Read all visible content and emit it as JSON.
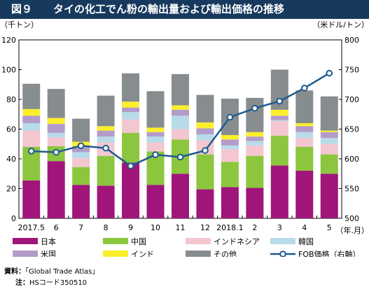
{
  "title": {
    "figure_number": "図９",
    "text": "タイの化工でん粉の輸出量および輸出価格の推移"
  },
  "chart_data": {
    "type": "bar",
    "stacked": true,
    "left_unit": "（千トン）",
    "right_unit": "（米ドル/トン）",
    "x_unit": "（年.月）",
    "categories": [
      "2017.5",
      "6",
      "7",
      "8",
      "9",
      "10",
      "11",
      "12",
      "2018.1",
      "2",
      "3",
      "4",
      "5"
    ],
    "y_left": {
      "min": 0,
      "max": 120,
      "ticks": [
        "0",
        "20",
        "40",
        "60",
        "80",
        "100",
        "120"
      ]
    },
    "y_right": {
      "min": 500,
      "max": 800,
      "ticks": [
        "500",
        "550",
        "600",
        "650",
        "700",
        "750",
        "800"
      ]
    },
    "series": [
      {
        "name": "日本",
        "color": "#a0157a",
        "values": [
          25.5,
          38.5,
          22.5,
          22,
          37.5,
          22.5,
          30,
          19.5,
          21,
          20.5,
          35.5,
          32,
          30
        ]
      },
      {
        "name": "中国",
        "color": "#8cc63f",
        "values": [
          22.5,
          10,
          12,
          20,
          20,
          22.5,
          23,
          23.5,
          17,
          21.5,
          20,
          16,
          13
        ]
      },
      {
        "name": "インドネシア",
        "color": "#f4c6cf",
        "values": [
          11,
          6,
          6,
          9,
          9,
          6,
          7,
          9.5,
          8.5,
          7,
          10,
          6,
          7
        ]
      },
      {
        "name": "韓国",
        "color": "#b7dbe9",
        "values": [
          5,
          3,
          4,
          4,
          5,
          4,
          9,
          4,
          2.5,
          3,
          0.5,
          4,
          4
        ]
      },
      {
        "name": "米国",
        "color": "#b39cc9",
        "values": [
          5,
          6,
          4,
          4,
          3,
          3,
          4,
          4,
          4,
          3,
          3,
          4,
          4
        ]
      },
      {
        "name": "インド",
        "color": "#fbef2c",
        "values": [
          4.5,
          4,
          3,
          3,
          4,
          3,
          3,
          4,
          3,
          3,
          4,
          2,
          1
        ]
      },
      {
        "name": "その他",
        "color": "#878c8f",
        "values": [
          17,
          19.5,
          15.5,
          20.5,
          19,
          24.5,
          21,
          18.5,
          24.5,
          23,
          27,
          22,
          23
        ]
      }
    ],
    "line": {
      "name": "FOB価格（右軸）",
      "color": "#1e5b8e",
      "values": [
        613,
        611,
        622,
        618,
        588,
        607,
        603,
        614,
        670,
        685,
        697,
        719,
        744
      ]
    },
    "legend_position": "bottom"
  },
  "notes": {
    "source_label": "資料：",
    "source_text": "「Global Trade Atlas」",
    "note_label": "注：",
    "note_text": "HSコード350510"
  }
}
